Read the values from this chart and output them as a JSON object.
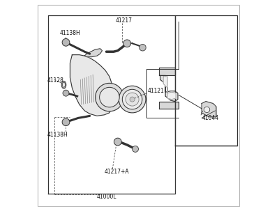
{
  "bg_color": "#ffffff",
  "line_color": "#333333",
  "dashed_color": "#555555",
  "label_color": "#111111",
  "label_fontsize": 5.5,
  "labels": {
    "41138H_top": [
      0.115,
      0.845,
      "41138H"
    ],
    "41217": [
      0.385,
      0.905,
      "41217"
    ],
    "41128": [
      0.055,
      0.615,
      "41128"
    ],
    "41121": [
      0.54,
      0.565,
      "41121"
    ],
    "41138H_bot": [
      0.055,
      0.355,
      "41138H"
    ],
    "41217A": [
      0.33,
      0.175,
      "41217+A"
    ],
    "41000L": [
      0.295,
      0.055,
      "41000L"
    ],
    "41044": [
      0.8,
      0.435,
      "41044"
    ]
  }
}
